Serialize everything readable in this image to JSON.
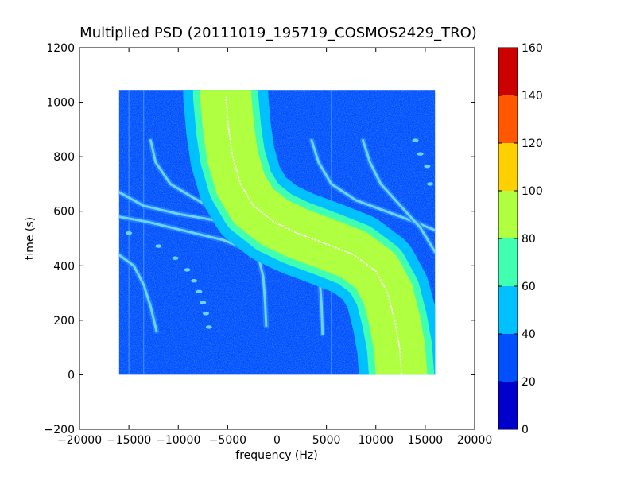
{
  "chart_data": {
    "type": "heatmap",
    "title": "Multiplied PSD (20111019_195719_COSMOS2429_TRO)",
    "xlabel": "frequency (Hz)",
    "ylabel": "time (s)",
    "xlim": [
      -20000,
      20000
    ],
    "ylim": [
      -200,
      1200
    ],
    "xticks": [
      -20000,
      -15000,
      -10000,
      -5000,
      0,
      5000,
      10000,
      15000,
      20000
    ],
    "yticks": [
      -200,
      0,
      200,
      400,
      600,
      800,
      1000,
      1200
    ],
    "data_extent": {
      "x": [
        -16000,
        16000
      ],
      "y": [
        0,
        1045
      ]
    },
    "background_value": 30,
    "colorbar": {
      "levels": [
        0,
        20,
        40,
        60,
        80,
        100,
        120,
        140,
        160
      ],
      "colors": [
        "#0000cd",
        "#0050ff",
        "#00c0ff",
        "#40ffb0",
        "#b0ff40",
        "#ffd000",
        "#ff5800",
        "#cd0000"
      ]
    },
    "main_trace": {
      "description": "Doppler S-curve, frequency as function of time",
      "points": [
        {
          "t": 0,
          "f": 12600
        },
        {
          "t": 100,
          "f": 12400
        },
        {
          "t": 200,
          "f": 11900
        },
        {
          "t": 300,
          "f": 11200
        },
        {
          "t": 380,
          "f": 10000
        },
        {
          "t": 440,
          "f": 7800
        },
        {
          "t": 480,
          "f": 5000
        },
        {
          "t": 520,
          "f": 2000
        },
        {
          "t": 560,
          "f": -300
        },
        {
          "t": 620,
          "f": -2400
        },
        {
          "t": 700,
          "f": -3700
        },
        {
          "t": 800,
          "f": -4500
        },
        {
          "t": 900,
          "f": -4900
        },
        {
          "t": 1020,
          "f": -5200
        }
      ],
      "band_width_hz": {
        "outer": 4300,
        "mid": 3300,
        "inner": 2600
      }
    },
    "side_traces": [
      {
        "points": [
          {
            "t": 670,
            "f": -16000
          },
          {
            "t": 620,
            "f": -13500
          },
          {
            "t": 590,
            "f": -10000
          },
          {
            "t": 565,
            "f": -6000
          },
          {
            "t": 545,
            "f": -2500
          },
          {
            "t": 525,
            "f": 0
          },
          {
            "t": 500,
            "f": 2000
          },
          {
            "t": 440,
            "f": 3500
          },
          {
            "t": 360,
            "f": 4300
          },
          {
            "t": 260,
            "f": 4500
          },
          {
            "t": 150,
            "f": 4600
          }
        ]
      },
      {
        "points": [
          {
            "t": 580,
            "f": -16000
          },
          {
            "t": 560,
            "f": -13000
          },
          {
            "t": 525,
            "f": -9000
          },
          {
            "t": 495,
            "f": -5500
          },
          {
            "t": 460,
            "f": -3000
          },
          {
            "t": 420,
            "f": -1800
          },
          {
            "t": 360,
            "f": -1400
          },
          {
            "t": 260,
            "f": -1200
          },
          {
            "t": 180,
            "f": -1100
          }
        ]
      },
      {
        "points": [
          {
            "t": 440,
            "f": -16000
          },
          {
            "t": 400,
            "f": -14500
          },
          {
            "t": 330,
            "f": -13500
          },
          {
            "t": 250,
            "f": -12800
          },
          {
            "t": 160,
            "f": -12200
          }
        ]
      },
      {
        "points": [
          {
            "t": 860,
            "f": -12800
          },
          {
            "t": 780,
            "f": -12300
          },
          {
            "t": 700,
            "f": -10800
          },
          {
            "t": 650,
            "f": -8500
          },
          {
            "t": 600,
            "f": -6000
          }
        ]
      },
      {
        "points": [
          {
            "t": 860,
            "f": 3500
          },
          {
            "t": 780,
            "f": 4200
          },
          {
            "t": 700,
            "f": 5500
          },
          {
            "t": 640,
            "f": 8000
          },
          {
            "t": 600,
            "f": 11000
          },
          {
            "t": 560,
            "f": 14000
          },
          {
            "t": 530,
            "f": 16000
          }
        ]
      },
      {
        "points": [
          {
            "t": 860,
            "f": 8700
          },
          {
            "t": 780,
            "f": 9400
          },
          {
            "t": 700,
            "f": 10500
          },
          {
            "t": 620,
            "f": 12500
          },
          {
            "t": 540,
            "f": 14500
          },
          {
            "t": 450,
            "f": 16000
          }
        ]
      }
    ],
    "dot_traces": [
      {
        "points": [
          {
            "t": 520,
            "f": -15000
          },
          {
            "t": 472,
            "f": -12000
          },
          {
            "t": 428,
            "f": -10300
          },
          {
            "t": 385,
            "f": -9100
          },
          {
            "t": 345,
            "f": -8400
          },
          {
            "t": 305,
            "f": -7900
          },
          {
            "t": 265,
            "f": -7500
          },
          {
            "t": 225,
            "f": -7200
          },
          {
            "t": 175,
            "f": -6900
          }
        ]
      },
      {
        "points": [
          {
            "t": 860,
            "f": 14000
          },
          {
            "t": 810,
            "f": 14500
          },
          {
            "t": 765,
            "f": 15200
          },
          {
            "t": 700,
            "f": 15500
          }
        ]
      }
    ],
    "vertical_lines_hz": [
      -13500,
      -15000,
      5500
    ]
  }
}
